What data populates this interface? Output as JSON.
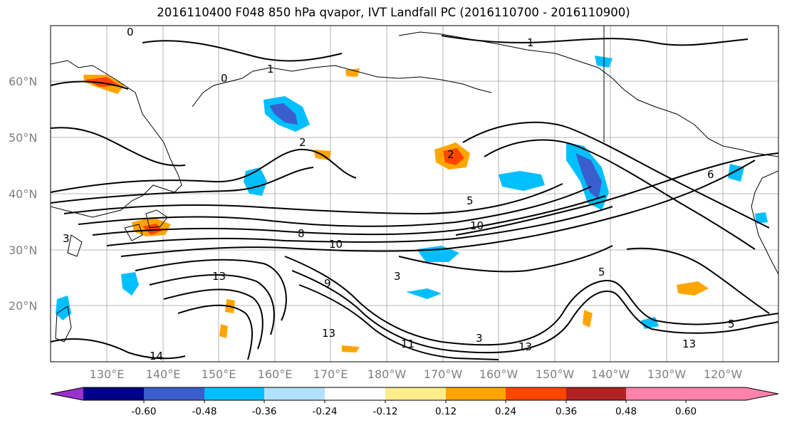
{
  "title": "2016110400 F048 850 hPa qvapor, IVT Landfall PC (2016110700 - 2016110900)",
  "map": {
    "lat_labels": [
      "60°N",
      "50°N",
      "40°N",
      "30°N",
      "20°N"
    ],
    "lon_labels": [
      "130°E",
      "140°E",
      "150°E",
      "160°E",
      "170°E",
      "180°W",
      "170°W",
      "160°W",
      "150°W",
      "140°W",
      "130°W",
      "120°W"
    ],
    "contour_labels": [
      "0",
      "1",
      "1",
      "0",
      "2",
      "2",
      "5",
      "10",
      "8",
      "10",
      "13",
      "9",
      "3",
      "5",
      "13",
      "14",
      "11",
      "13",
      "13",
      "5",
      "3",
      "6",
      "3"
    ]
  },
  "colorbar": {
    "colors": [
      "#9932cc",
      "#00008b",
      "#3a5fcd",
      "#00bfff",
      "#b0e2ff",
      "#ffffff",
      "#ffec8b",
      "#ffa500",
      "#ff4500",
      "#b22222",
      "#ff82ab"
    ],
    "tick_labels": [
      "-0.60",
      "-0.48",
      "-0.36",
      "-0.24",
      "-0.12",
      "0.12",
      "0.24",
      "0.36",
      "0.48",
      "0.60"
    ]
  }
}
